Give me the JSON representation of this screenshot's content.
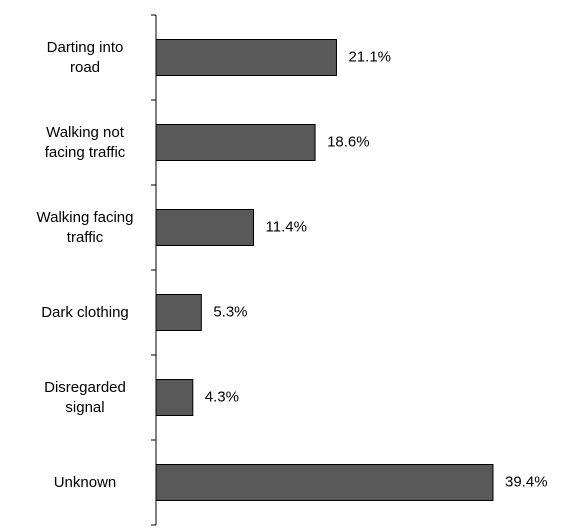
{
  "chart_data": {
    "type": "bar",
    "orientation": "horizontal",
    "categories": [
      "Darting into\nroad",
      "Walking not\nfacing traffic",
      "Walking facing\ntraffic",
      "Dark clothing",
      "Disregarded\nsignal",
      "Unknown"
    ],
    "values": [
      21.1,
      18.6,
      11.4,
      5.3,
      4.3,
      39.4
    ],
    "value_labels": [
      "21.1%",
      "18.6%",
      "11.4%",
      "5.3%",
      "4.3%",
      "39.4%"
    ],
    "color": "#595959"
  }
}
